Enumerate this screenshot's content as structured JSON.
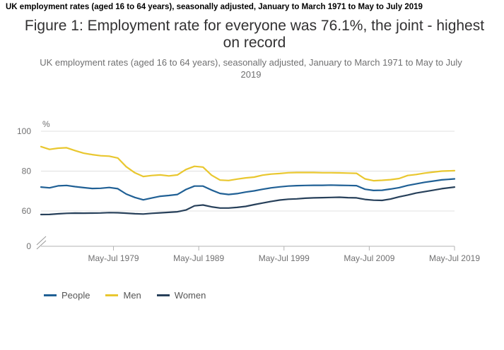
{
  "header": {
    "caption": "UK employment rates (aged 16 to 64 years), seasonally adjusted, January to March 1971 to May to July 2019"
  },
  "chart_data": {
    "type": "line",
    "title": "Figure 1: Employment rate for everyone was 76.1%, the joint - highest on record",
    "subtitle": "UK employment rates (aged 16 to 64 years), seasonally adjusted, January to March 1971 to May to July 2019",
    "ylabel": "%",
    "xlabel": "",
    "ylim": [
      0,
      100
    ],
    "xlim": [
      1971.0,
      2019.5
    ],
    "y_ticks": [
      0,
      60,
      80,
      100
    ],
    "axis_break": true,
    "x_ticks": [
      {
        "x": 1979.5,
        "label": "May-Jul 1979"
      },
      {
        "x": 1989.5,
        "label": "May-Jul 1989"
      },
      {
        "x": 1999.5,
        "label": "May-Jul 1999"
      },
      {
        "x": 2009.5,
        "label": "May-Jul 2009"
      },
      {
        "x": 2019.5,
        "label": "May-Jul 2019"
      }
    ],
    "grid": true,
    "legend_position": "bottom-left",
    "series": [
      {
        "name": "People",
        "color": "#206095",
        "x": [
          1971,
          1972,
          1973,
          1974,
          1975,
          1976,
          1977,
          1978,
          1979,
          1980,
          1981,
          1982,
          1983,
          1984,
          1985,
          1986,
          1987,
          1988,
          1989,
          1990,
          1991,
          1992,
          1993,
          1994,
          1995,
          1996,
          1997,
          1998,
          1999,
          2000,
          2001,
          2002,
          2003,
          2004,
          2005,
          2006,
          2007,
          2008,
          2009,
          2010,
          2011,
          2012,
          2013,
          2014,
          2015,
          2016,
          2017,
          2018,
          2019.5
        ],
        "values": [
          72.0,
          71.6,
          72.6,
          72.8,
          72.2,
          71.7,
          71.3,
          71.4,
          71.8,
          71.2,
          68.5,
          66.8,
          65.6,
          66.5,
          67.4,
          67.8,
          68.3,
          70.8,
          72.5,
          72.5,
          70.5,
          68.8,
          68.3,
          68.7,
          69.5,
          70.1,
          70.9,
          71.6,
          72.1,
          72.5,
          72.7,
          72.8,
          72.9,
          72.9,
          73.0,
          72.9,
          72.8,
          72.7,
          70.9,
          70.3,
          70.4,
          71.0,
          71.7,
          72.8,
          73.6,
          74.4,
          75.0,
          75.6,
          76.1
        ]
      },
      {
        "name": "Men",
        "color": "#e9c72f",
        "x": [
          1971,
          1972,
          1973,
          1974,
          1975,
          1976,
          1977,
          1978,
          1979,
          1980,
          1981,
          1982,
          1983,
          1984,
          1985,
          1986,
          1987,
          1988,
          1989,
          1990,
          1991,
          1992,
          1993,
          1994,
          1995,
          1996,
          1997,
          1998,
          1999,
          2000,
          2001,
          2002,
          2003,
          2004,
          2005,
          2006,
          2007,
          2008,
          2009,
          2010,
          2011,
          2012,
          2013,
          2014,
          2015,
          2016,
          2017,
          2018,
          2019.5
        ],
        "values": [
          92.3,
          90.9,
          91.5,
          91.7,
          90.3,
          89.0,
          88.3,
          87.7,
          87.5,
          86.6,
          82.2,
          79.2,
          77.3,
          77.8,
          78.1,
          77.6,
          78.1,
          80.8,
          82.4,
          82.0,
          78.0,
          75.5,
          75.3,
          76.0,
          76.6,
          77.0,
          78.0,
          78.5,
          78.8,
          79.2,
          79.3,
          79.3,
          79.3,
          79.2,
          79.2,
          79.1,
          79.0,
          78.9,
          76.1,
          75.2,
          75.4,
          75.7,
          76.3,
          77.8,
          78.3,
          79.0,
          79.5,
          80.0,
          80.2
        ]
      },
      {
        "name": "Women",
        "color": "#27405a",
        "x": [
          1971,
          1972,
          1973,
          1974,
          1975,
          1976,
          1977,
          1978,
          1979,
          1980,
          1981,
          1982,
          1983,
          1984,
          1985,
          1986,
          1987,
          1988,
          1989,
          1990,
          1991,
          1992,
          1993,
          1994,
          1995,
          1996,
          1997,
          1998,
          1999,
          2000,
          2001,
          2002,
          2003,
          2004,
          2005,
          2006,
          2007,
          2008,
          2009,
          2010,
          2011,
          2012,
          2013,
          2014,
          2015,
          2016,
          2017,
          2018,
          2019.5
        ],
        "values": [
          52.5,
          52.6,
          54.0,
          55.0,
          55.5,
          55.4,
          55.5,
          55.8,
          56.5,
          56.3,
          55.3,
          54.2,
          53.6,
          55.0,
          56.1,
          57.2,
          58.3,
          60.5,
          62.6,
          63.0,
          62.1,
          61.5,
          61.5,
          61.8,
          62.3,
          63.2,
          64.0,
          64.8,
          65.5,
          65.9,
          66.1,
          66.4,
          66.6,
          66.7,
          66.8,
          66.9,
          66.7,
          66.6,
          65.8,
          65.4,
          65.3,
          66.0,
          67.1,
          68.0,
          69.0,
          69.7,
          70.4,
          71.2,
          72.0
        ]
      }
    ]
  }
}
